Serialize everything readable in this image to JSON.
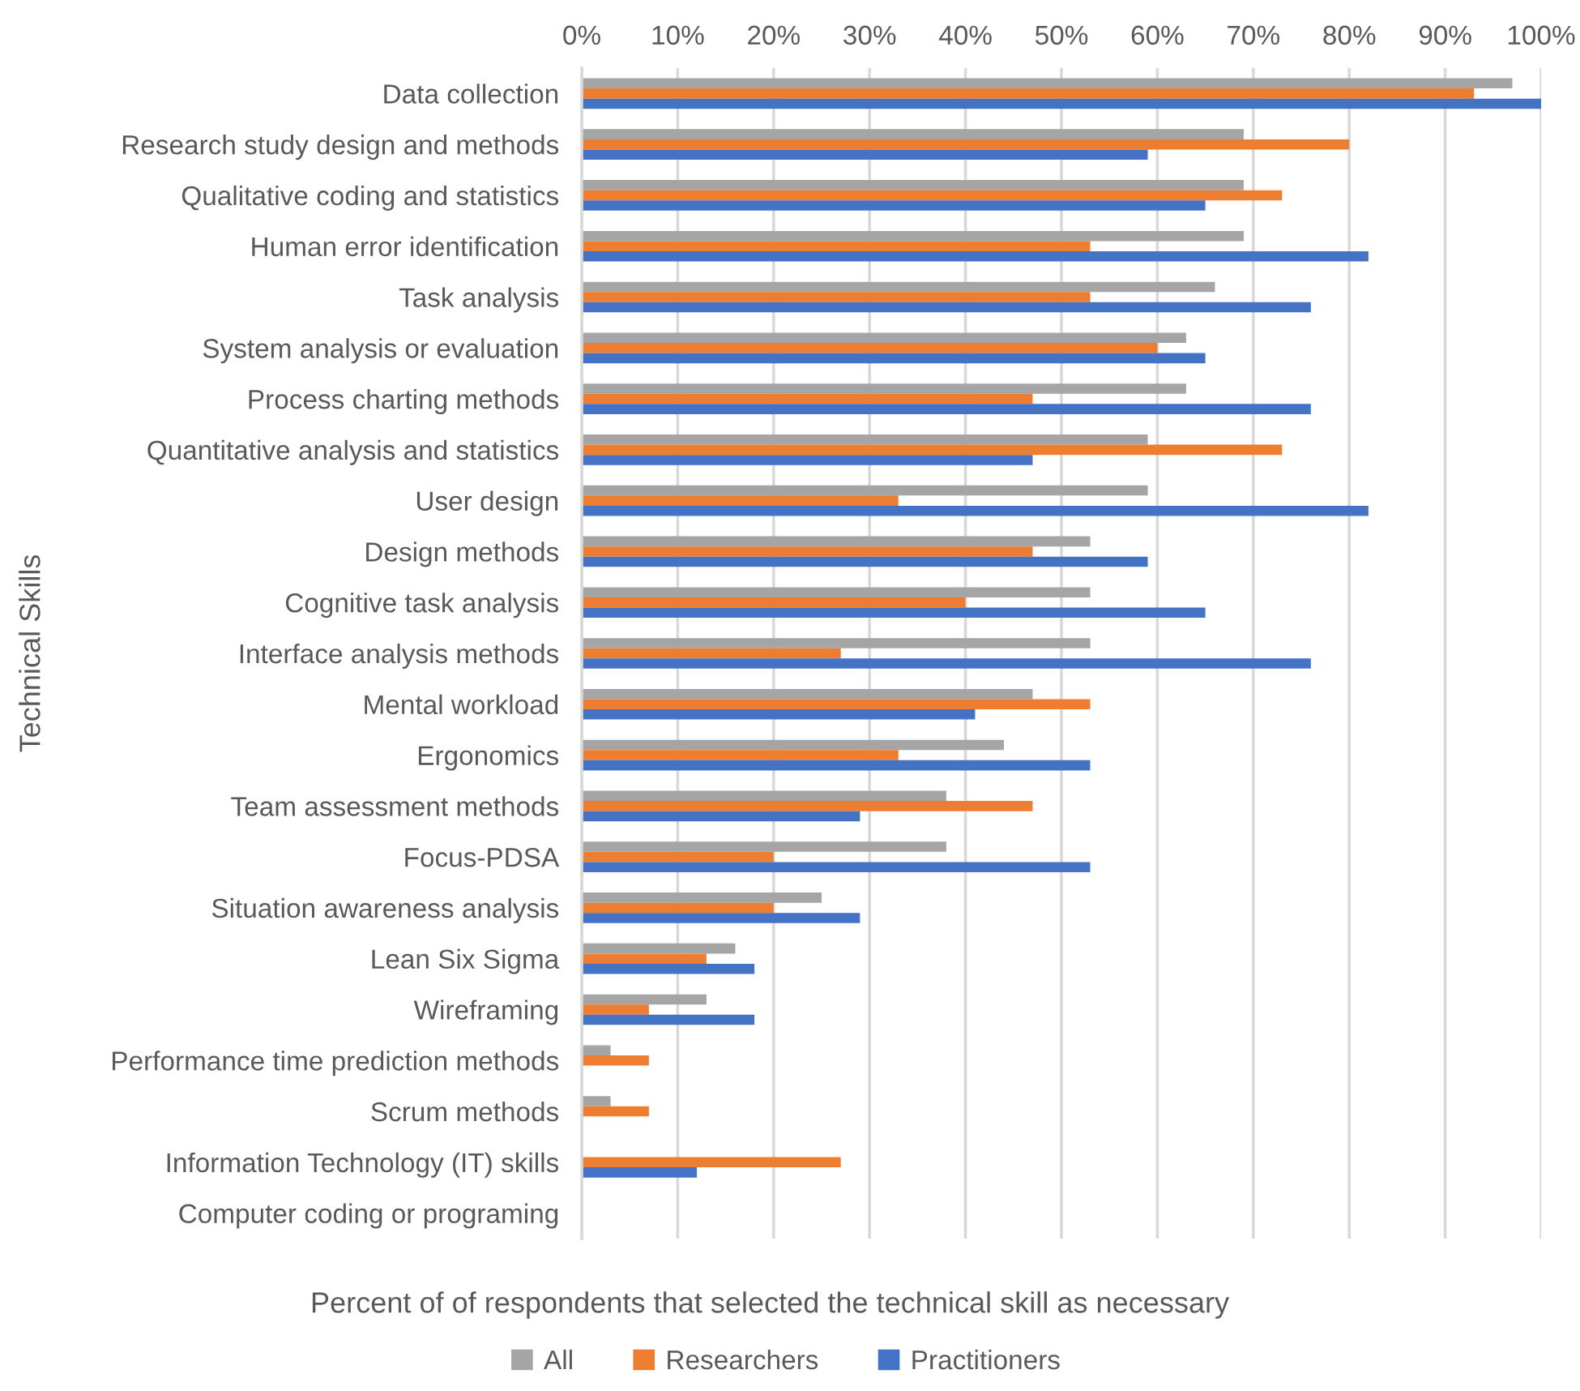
{
  "chart_data": {
    "type": "bar",
    "orientation": "horizontal",
    "xlabel": "Percent of of respondents that selected the technical skill as necessary",
    "ylabel": "Technical Skills",
    "categories": [
      "Data collection",
      "Research study design and methods",
      "Qualitative coding and statistics",
      "Human error identification",
      "Task analysis",
      "System analysis or evaluation",
      "Process charting methods",
      "Quantitative analysis and statistics",
      "User design",
      "Design methods",
      "Cognitive task analysis",
      "Interface analysis methods",
      "Mental workload",
      "Ergonomics",
      "Team assessment methods",
      "Focus-PDSA",
      "Situation awareness analysis",
      "Lean Six Sigma",
      "Wireframing",
      "Performance time prediction methods",
      "Scrum methods",
      "Information Technology (IT) skills",
      "Computer coding or programing"
    ],
    "series": [
      {
        "name": "All",
        "color": "#a5a5a5",
        "values": [
          97,
          69,
          69,
          69,
          66,
          63,
          63,
          59,
          59,
          53,
          53,
          53,
          47,
          44,
          38,
          38,
          25,
          16,
          13,
          3,
          3,
          0,
          0
        ]
      },
      {
        "name": "Researchers",
        "color": "#ed7d31",
        "values": [
          93,
          80,
          73,
          53,
          53,
          60,
          47,
          73,
          33,
          47,
          40,
          27,
          53,
          33,
          47,
          20,
          20,
          13,
          7,
          7,
          7,
          27,
          0
        ]
      },
      {
        "name": "Practitioners",
        "color": "#4472c4",
        "values": [
          100,
          59,
          65,
          82,
          76,
          65,
          76,
          47,
          82,
          59,
          65,
          76,
          41,
          53,
          29,
          53,
          29,
          18,
          18,
          0,
          0,
          12,
          0
        ]
      }
    ],
    "xlim": [
      0,
      100
    ],
    "xticks": [
      {
        "value": 0,
        "label": "0%"
      },
      {
        "value": 10,
        "label": "10%"
      },
      {
        "value": 20,
        "label": "20%"
      },
      {
        "value": 30,
        "label": "30%"
      },
      {
        "value": 40,
        "label": "40%"
      },
      {
        "value": 50,
        "label": "50%"
      },
      {
        "value": 60,
        "label": "60%"
      },
      {
        "value": 70,
        "label": "70%"
      },
      {
        "value": 80,
        "label": "80%"
      },
      {
        "value": 90,
        "label": "90%"
      },
      {
        "value": 100,
        "label": "100%"
      }
    ],
    "grid": "x",
    "legend": "bottom"
  }
}
